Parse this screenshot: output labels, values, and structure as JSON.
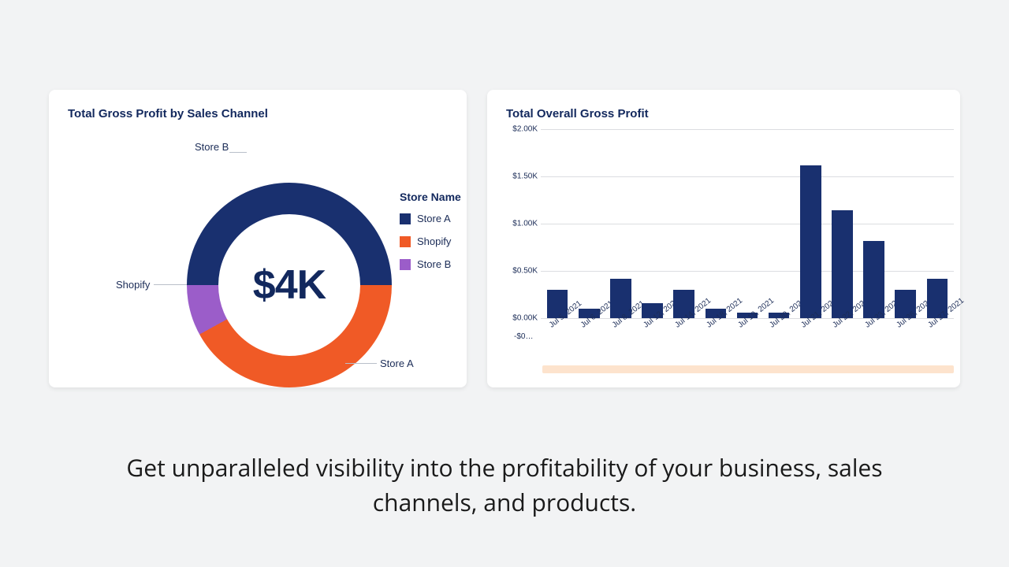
{
  "donut_card": {
    "title": "Total Gross Profit by Sales Channel",
    "center_value": "$4K",
    "center_color": "#12285d",
    "center_fontsize": 52,
    "legend_title": "Store Name",
    "segments": [
      {
        "label": "Store A",
        "color": "#19306f",
        "pct": 50
      },
      {
        "label": "Shopify",
        "color": "#f05a26",
        "pct": 42
      },
      {
        "label": "Store B",
        "color": "#9b5dc9",
        "pct": 8
      }
    ],
    "hole_ratio": 0.69,
    "background_color": "#ffffff",
    "annot": {
      "store_b": "Store B",
      "shopify": "Shopify",
      "store_a": "Store A"
    }
  },
  "bar_card": {
    "title": "Total Overall Gross Profit",
    "type": "bar",
    "bar_color": "#19306f",
    "background_color": "#ffffff",
    "grid_color": "#dcdde1",
    "ylim": [
      0,
      2.0
    ],
    "ytick_step": 0.5,
    "yticks": [
      "$0.00K",
      "$0.50K",
      "$1.00K",
      "$1.50K",
      "$2.00K"
    ],
    "neg_label": "-$0…",
    "categories": [
      "Jul 5, 2021",
      "Jul 6, 2021",
      "Jul 8, 2021",
      "Jul 12, 2021",
      "Jul 14, 2021",
      "Jul 18, 2021",
      "Jul 19, 2021",
      "Jul 20, 2021",
      "Jul 21, 2021",
      "Jul 22, 2021",
      "Jul 23, 2021",
      "Jul 26, 2021",
      "Jul 27, 2021"
    ],
    "values": [
      0.3,
      0.1,
      0.42,
      0.16,
      0.3,
      0.1,
      0.06,
      0.06,
      1.62,
      1.14,
      0.82,
      0.3,
      0.42
    ],
    "bar_width": 0.78,
    "label_fontsize": 10,
    "scroll_track_color": "#fde3cd"
  },
  "caption": "Get unparalleled visibility into the profitability of your business, sales channels, and products."
}
